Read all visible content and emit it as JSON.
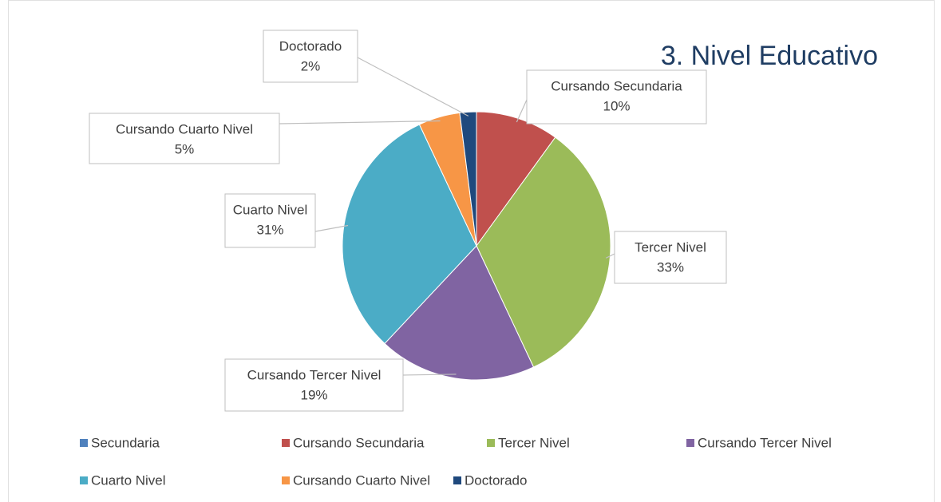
{
  "chart_data": {
    "type": "pie",
    "title": "3. Nivel Educativo",
    "categories": [
      "Secundaria",
      "Cursando Secundaria",
      "Tercer Nivel",
      "Cursando Tercer Nivel",
      "Cuarto Nivel",
      "Cursando Cuarto Nivel",
      "Doctorado"
    ],
    "values": [
      0,
      10,
      33,
      19,
      31,
      5,
      2
    ],
    "value_labels": [
      null,
      "10%",
      "33%",
      "19%",
      "31%",
      "5%",
      "2%"
    ],
    "colors": [
      "#4f81bd",
      "#c0504d",
      "#9bbb59",
      "#8064a2",
      "#4bacc6",
      "#f79646",
      "#1f497d"
    ],
    "legend": "bottom"
  }
}
